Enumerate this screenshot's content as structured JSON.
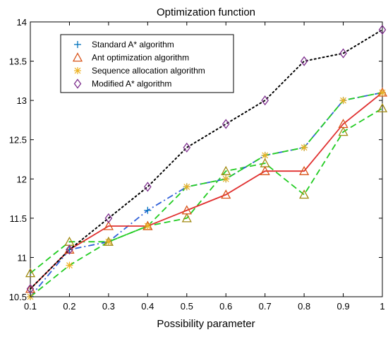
{
  "chart_data": {
    "type": "line",
    "title": "Optimization function",
    "xlabel": "Possibility parameter",
    "ylabel": "",
    "x": [
      0.1,
      0.2,
      0.3,
      0.4,
      0.5,
      0.6,
      0.7,
      0.8,
      0.9,
      1
    ],
    "xticks": [
      "0.1",
      "0.2",
      "0.3",
      "0.4",
      "0.5",
      "0.6",
      "0.7",
      "0.8",
      "0.9",
      "1"
    ],
    "yticks": [
      "10.5",
      "11",
      "11.5",
      "12",
      "12.5",
      "13",
      "13.5",
      "14"
    ],
    "xlim": [
      0.1,
      1
    ],
    "ylim": [
      10.5,
      14
    ],
    "grid": false,
    "legend_position": "top-left",
    "series": [
      {
        "name": "Standard A* algorithm",
        "line_color": "#3060d8",
        "line_style": "dash-dot",
        "marker": "plus",
        "marker_color": "#0072bd",
        "values": [
          10.5,
          11.1,
          11.2,
          11.6,
          11.9,
          12.0,
          12.3,
          12.4,
          13.0,
          13.1
        ]
      },
      {
        "name": "Ant optimization algorithm",
        "line_color": "#e03030",
        "line_style": "solid",
        "marker": "triangle",
        "marker_color": "#d95319",
        "values": [
          10.6,
          11.1,
          11.4,
          11.4,
          11.6,
          11.8,
          12.1,
          12.1,
          12.7,
          13.1
        ]
      },
      {
        "name": "Sequence allocation algorithm",
        "line_color": "#22cc22",
        "line_style": "dashed",
        "marker": "asterisk",
        "marker_color": "#edb120",
        "values": [
          10.5,
          10.9,
          11.2,
          11.4,
          11.9,
          12.0,
          12.3,
          12.4,
          13.0,
          13.1
        ]
      },
      {
        "name": "Modified A* algorithm",
        "line_color": "#000000",
        "line_style": "dotted",
        "marker": "diamond",
        "marker_color": "#7e2f8e",
        "values": [
          10.6,
          11.1,
          11.5,
          11.9,
          12.4,
          12.7,
          13.0,
          13.5,
          13.6,
          13.9
        ]
      }
    ],
    "marker_only_series": [
      {
        "of": "Ant optimization algorithm",
        "marker": "triangle",
        "marker_color": "#a08a10",
        "values": [
          10.8,
          11.2,
          11.2,
          11.4,
          11.5,
          12.1,
          12.2,
          11.8,
          12.6,
          12.9
        ]
      }
    ],
    "extra_line": {
      "line_color": "#22cc22",
      "line_style": "dashed",
      "values": [
        10.8,
        11.2,
        11.2,
        11.4,
        11.5,
        12.1,
        12.2,
        11.8,
        12.6,
        12.9
      ]
    }
  }
}
